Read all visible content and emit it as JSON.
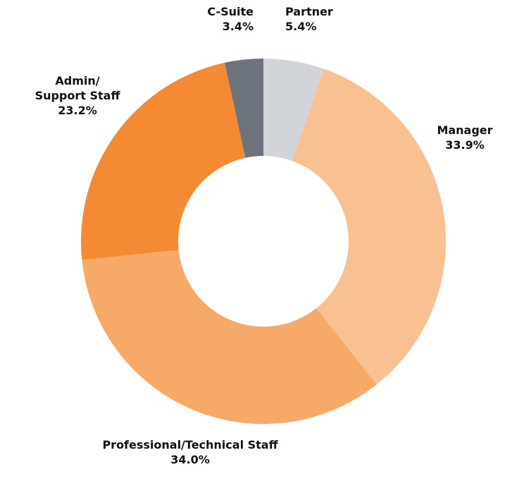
{
  "chart_data": {
    "type": "donut",
    "categories": [
      "Partner",
      "Manager",
      "Professional/Technical Staff",
      "Admin/ Support Staff",
      "C-Suite"
    ],
    "values": [
      5.4,
      33.9,
      34.0,
      23.2,
      3.4
    ],
    "value_labels": [
      "5.4%",
      "33.9%",
      "34.0%",
      "23.2%",
      "3.4%"
    ],
    "colors": [
      "#d1d5da",
      "#f9c092",
      "#f7a967",
      "#f48a34",
      "#6c737c"
    ]
  }
}
